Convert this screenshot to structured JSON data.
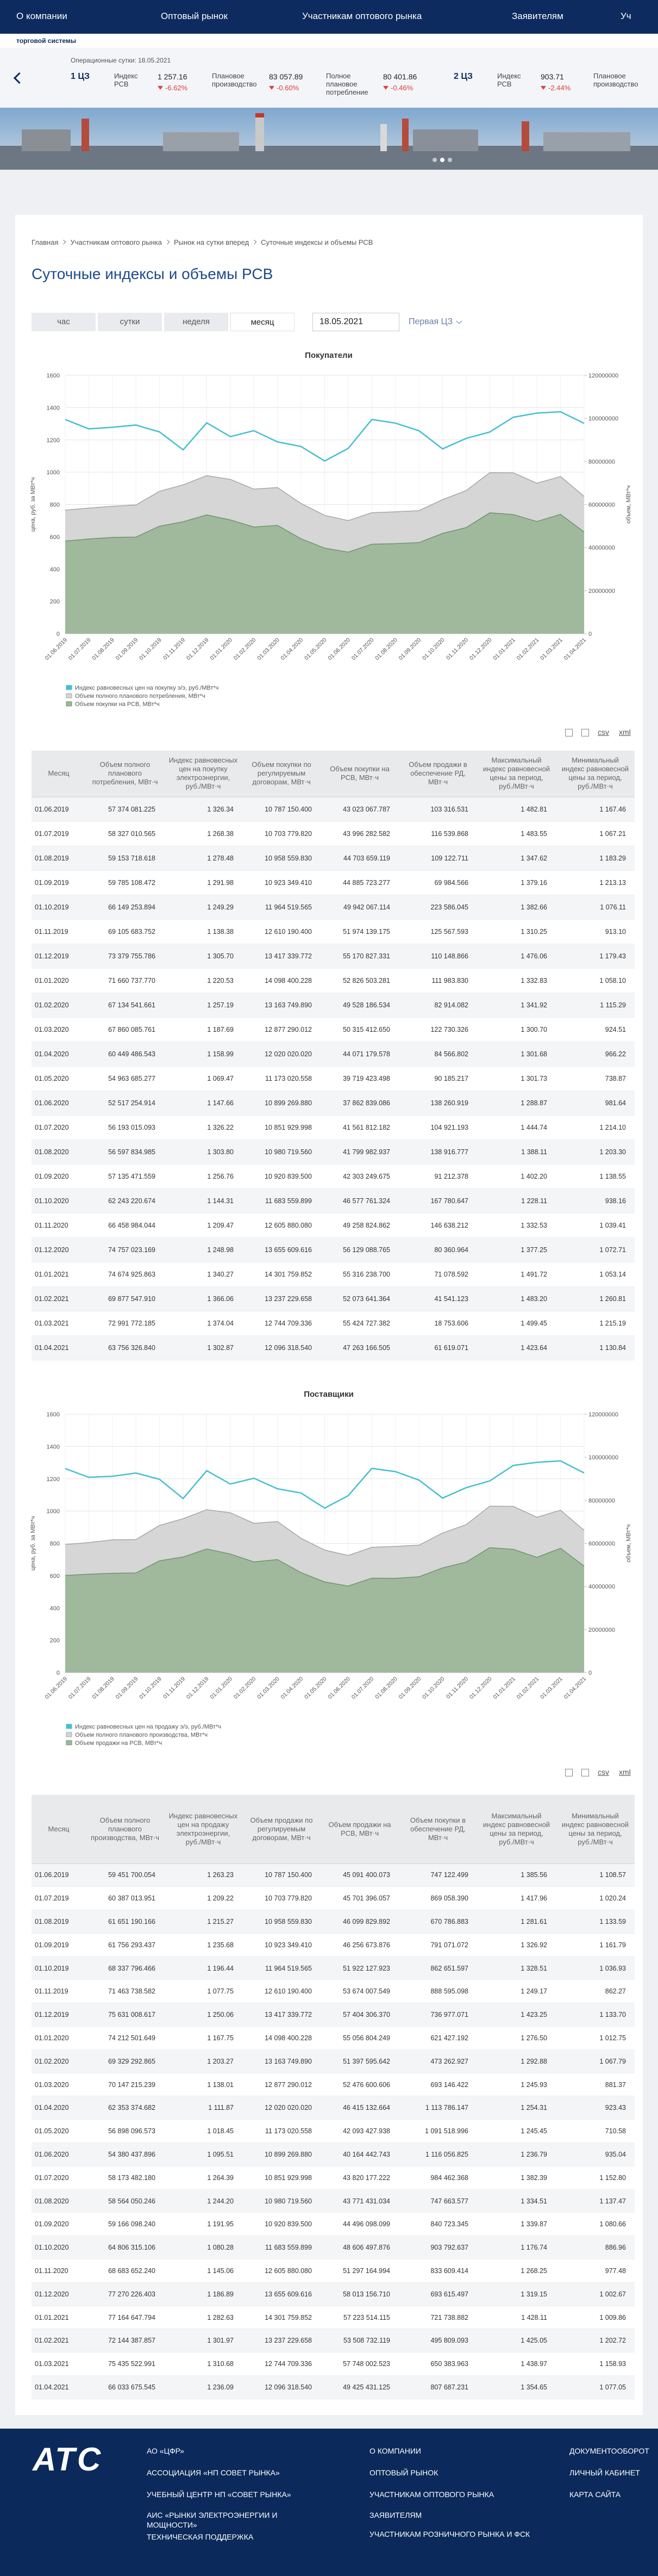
{
  "nav": {
    "items": [
      "О компании",
      "Оптовый рынок",
      "Участникам оптового рынка",
      "Заявителям",
      "Уч"
    ],
    "subtitle": "торговой системы"
  },
  "ticker": {
    "date_label": "Операционные сутки: 18.05.2021",
    "zones": [
      {
        "name": "1 ЦЗ",
        "items": [
          {
            "label": "Индекс РСВ",
            "value": "1 257.16",
            "change": "-6.62%"
          },
          {
            "label": "Плановое производство",
            "value": "83 057.89",
            "change": "-0.60%"
          },
          {
            "label": "Полное плановое потребление",
            "value": "80 401.86",
            "change": "-0.46%"
          }
        ]
      },
      {
        "name": "2 ЦЗ",
        "items": [
          {
            "label": "Индекс РСВ",
            "value": "903.71",
            "change": "-2.44%"
          },
          {
            "label": "Плановое производство"
          }
        ]
      }
    ]
  },
  "breadcrumb": [
    "Главная",
    "Участникам оптового рынка",
    "Рынок на сутки вперед",
    "Суточные индексы и объемы РСВ"
  ],
  "page_title": "Суточные индексы и объемы РСВ",
  "tabs": [
    "час",
    "сутки",
    "неделя",
    "месяц"
  ],
  "active_tab": 3,
  "date": "18.05.2021",
  "zone_select": "Первая ЦЗ",
  "exports": [
    "csv",
    "xml"
  ],
  "chart_data": [
    {
      "type": "line",
      "title": "Покупатели",
      "ylabel": "цена, руб. за МВт*ч",
      "y2label": "объем, МВт*ч",
      "categories": [
        "01.06.2019",
        "01.07.2019",
        "01.08.2019",
        "01.09.2019",
        "01.10.2019",
        "01.11.2019",
        "01.12.2019",
        "01.01.2020",
        "01.02.2020",
        "01.03.2020",
        "01.04.2020",
        "01.05.2020",
        "01.06.2020",
        "01.07.2020",
        "01.08.2020",
        "01.09.2020",
        "01.10.2020",
        "01.11.2020",
        "01.12.2020",
        "01.01.2021",
        "01.02.2021",
        "01.03.2021",
        "01.04.2021"
      ],
      "ylim": [
        0,
        1600
      ],
      "yticks": [
        0,
        200,
        400,
        600,
        800,
        1000,
        1200,
        1400,
        1600
      ],
      "y2lim": [
        0,
        120000000
      ],
      "y2ticks": [
        0,
        20000000,
        40000000,
        60000000,
        80000000,
        100000000,
        120000000
      ],
      "grid": true,
      "legend": "bottom",
      "series": [
        {
          "name": "Индекс равновесных цен на покупку э/э, руб./МВт*ч",
          "color": "#45bfcf",
          "kind": "line",
          "values": [
            1326.34,
            1268.38,
            1278.48,
            1291.98,
            1249.29,
            1138.38,
            1305.7,
            1220.53,
            1257.19,
            1187.69,
            1158.99,
            1069.47,
            1147.66,
            1326.22,
            1303.8,
            1256.76,
            1144.31,
            1209.47,
            1248.98,
            1340.27,
            1366.06,
            1374.04,
            1302.87
          ]
        },
        {
          "name": "Объем полного планового потребления, МВт*ч",
          "color": "#d4d4d4",
          "kind": "area",
          "axis": "y2",
          "values": [
            57374081.225,
            58327010.565,
            59153718.618,
            59785108.472,
            66149253.894,
            69105683.752,
            73379755.786,
            71660737.77,
            67134541.661,
            67860085.761,
            60449486.543,
            54963685.277,
            52517254.914,
            56193015.093,
            56597834.985,
            57135471.559,
            62243220.674,
            66458984.044,
            74757023.169,
            74674925.863,
            69877547.91,
            72991772.185,
            63756326.84
          ]
        },
        {
          "name": "Объем покупки на РСВ, МВт*ч",
          "color": "#9db79a",
          "kind": "area",
          "axis": "y2",
          "values": [
            43023067.787,
            43996282.582,
            44703659.119,
            44885723.277,
            49942067.114,
            51974139.175,
            55170827.331,
            52826503.281,
            49528186.534,
            50315412.65,
            44071179.578,
            39719423.498,
            37862839.086,
            41561812.182,
            41799982.937,
            42303249.675,
            46577761.324,
            49258824.862,
            56129088.765,
            55316238.7,
            52073641.364,
            55424727.382,
            47263166.505
          ]
        }
      ]
    },
    {
      "type": "line",
      "title": "Поставщики",
      "ylabel": "цена, руб. за МВт*ч",
      "y2label": "объем, МВт*ч",
      "categories": [
        "01.06.2019",
        "01.07.2019",
        "01.08.2019",
        "01.09.2019",
        "01.10.2019",
        "01.11.2019",
        "01.12.2019",
        "01.01.2020",
        "01.02.2020",
        "01.03.2020",
        "01.04.2020",
        "01.05.2020",
        "01.06.2020",
        "01.07.2020",
        "01.08.2020",
        "01.09.2020",
        "01.10.2020",
        "01.11.2020",
        "01.12.2020",
        "01.01.2021",
        "01.02.2021",
        "01.03.2021",
        "01.04.2021"
      ],
      "ylim": [
        0,
        1600
      ],
      "yticks": [
        0,
        200,
        400,
        600,
        800,
        1000,
        1200,
        1400,
        1600
      ],
      "y2lim": [
        0,
        120000000
      ],
      "y2ticks": [
        0,
        20000000,
        40000000,
        60000000,
        80000000,
        100000000,
        120000000
      ],
      "grid": true,
      "legend": "bottom",
      "series": [
        {
          "name": "Индекс равновесных цен на продажу э/э, руб./МВт*ч",
          "color": "#45bfcf",
          "kind": "line",
          "values": [
            1263.23,
            1209.22,
            1215.27,
            1235.68,
            1196.44,
            1077.75,
            1250.06,
            1167.75,
            1203.27,
            1138.01,
            1111.87,
            1018.45,
            1095.51,
            1264.39,
            1244.2,
            1191.95,
            1080.28,
            1145.06,
            1186.89,
            1282.63,
            1301.97,
            1310.68,
            1236.09
          ]
        },
        {
          "name": "Объем полного планового производства, МВт*ч",
          "color": "#d4d4d4",
          "kind": "area",
          "axis": "y2",
          "values": [
            59451700.054,
            60387013.951,
            61651190.166,
            61756293.437,
            68337796.466,
            71463738.582,
            75631008.617,
            74212501.649,
            69329292.865,
            70147215.239,
            62353374.682,
            56898096.573,
            54380437.896,
            58173482.18,
            58564050.246,
            59166098.24,
            64806315.106,
            68683652.24,
            77270226.403,
            77164647.794,
            72144387.857,
            75435522.991,
            66033675.545
          ]
        },
        {
          "name": "Объем продажи на РСВ, МВт*ч",
          "color": "#9db79a",
          "kind": "area",
          "axis": "y2",
          "values": [
            45091400.073,
            45701396.057,
            46099829.892,
            46256673.876,
            51922127.923,
            53674007.549,
            57404306.37,
            55056804.249,
            51397595.642,
            52476600.606,
            46415132.664,
            42093427.938,
            40164442.743,
            43820177.222,
            43771431.034,
            44496098.099,
            48606497.876,
            51297164.994,
            58013156.71,
            57223514.115,
            53508732.119,
            57748002.523,
            49425431.125
          ]
        }
      ]
    }
  ],
  "tables": [
    {
      "columns": [
        "Месяц",
        "Объем полного планового потребления, МВт·ч",
        "Индекс равновесных цен на покупку электроэнергии, руб./МВт·ч",
        "Объем покупки по регулируемым договорам, МВт·ч",
        "Объем покупки на РСВ, МВт·ч",
        "Объем продажи в обеспечение РД, МВт·ч",
        "Максимальный индекс равновесной цены за период, руб./МВт·ч",
        "Минимальный индекс равновесной цены за период, руб./МВт·ч"
      ],
      "rows": [
        [
          "01.06.2019",
          "57 374 081.225",
          "1 326.34",
          "10 787 150.400",
          "43 023 067.787",
          "103 316.531",
          "1 482.81",
          "1 167.46"
        ],
        [
          "01.07.2019",
          "58 327 010.565",
          "1 268.38",
          "10 703 779.820",
          "43 996 282.582",
          "116 539.868",
          "1 483.55",
          "1 067.21"
        ],
        [
          "01.08.2019",
          "59 153 718.618",
          "1 278.48",
          "10 958 559.830",
          "44 703 659.119",
          "109 122.711",
          "1 347.62",
          "1 183.29"
        ],
        [
          "01.09.2019",
          "59 785 108.472",
          "1 291.98",
          "10 923 349.410",
          "44 885 723.277",
          "69 984.566",
          "1 379.16",
          "1 213.13"
        ],
        [
          "01.10.2019",
          "66 149 253.894",
          "1 249.29",
          "11 964 519.565",
          "49 942 067.114",
          "223 586.045",
          "1 382.66",
          "1 076.11"
        ],
        [
          "01.11.2019",
          "69 105 683.752",
          "1 138.38",
          "12 610 190.400",
          "51 974 139.175",
          "125 567.593",
          "1 310.25",
          "913.10"
        ],
        [
          "01.12.2019",
          "73 379 755.786",
          "1 305.70",
          "13 417 339.772",
          "55 170 827.331",
          "110 148.866",
          "1 476.06",
          "1 179.43"
        ],
        [
          "01.01.2020",
          "71 660 737.770",
          "1 220.53",
          "14 098 400.228",
          "52 826 503.281",
          "111 983.830",
          "1 332.83",
          "1 058.10"
        ],
        [
          "01.02.2020",
          "67 134 541.661",
          "1 257.19",
          "13 163 749.890",
          "49 528 186.534",
          "82 914.082",
          "1 341.92",
          "1 115.29"
        ],
        [
          "01.03.2020",
          "67 860 085.761",
          "1 187.69",
          "12 877 290.012",
          "50 315 412.650",
          "122 730.326",
          "1 300.70",
          "924.51"
        ],
        [
          "01.04.2020",
          "60 449 486.543",
          "1 158.99",
          "12 020 020.020",
          "44 071 179.578",
          "84 566.802",
          "1 301.68",
          "966.22"
        ],
        [
          "01.05.2020",
          "54 963 685.277",
          "1 069.47",
          "11 173 020.558",
          "39 719 423.498",
          "90 185.217",
          "1 301.73",
          "738.87"
        ],
        [
          "01.06.2020",
          "52 517 254.914",
          "1 147.66",
          "10 899 269.880",
          "37 862 839.086",
          "138 260.919",
          "1 288.87",
          "981.64"
        ],
        [
          "01.07.2020",
          "56 193 015.093",
          "1 326.22",
          "10 851 929.998",
          "41 561 812.182",
          "104 921.193",
          "1 444.74",
          "1 214.10"
        ],
        [
          "01.08.2020",
          "56 597 834.985",
          "1 303.80",
          "10 980 719.560",
          "41 799 982.937",
          "138 916.777",
          "1 388.11",
          "1 203.30"
        ],
        [
          "01.09.2020",
          "57 135 471.559",
          "1 256.76",
          "10 920 839.500",
          "42 303 249.675",
          "91 212.378",
          "1 402.20",
          "1 138.55"
        ],
        [
          "01.10.2020",
          "62 243 220.674",
          "1 144.31",
          "11 683 559.899",
          "46 577 761.324",
          "167 780.647",
          "1 228.11",
          "938.16"
        ],
        [
          "01.11.2020",
          "66 458 984.044",
          "1 209.47",
          "12 605 880.080",
          "49 258 824.862",
          "146 638.212",
          "1 332.53",
          "1 039.41"
        ],
        [
          "01.12.2020",
          "74 757 023.169",
          "1 248.98",
          "13 655 609.616",
          "56 129 088.765",
          "80 360.964",
          "1 377.25",
          "1 072.71"
        ],
        [
          "01.01.2021",
          "74 674 925.863",
          "1 340.27",
          "14 301 759.852",
          "55 316 238.700",
          "71 078.592",
          "1 491.72",
          "1 053.14"
        ],
        [
          "01.02.2021",
          "69 877 547.910",
          "1 366.06",
          "13 237 229.658",
          "52 073 641.364",
          "41 541.123",
          "1 483.20",
          "1 260.81"
        ],
        [
          "01.03.2021",
          "72 991 772.185",
          "1 374.04",
          "12 744 709.336",
          "55 424 727.382",
          "18 753.606",
          "1 499.45",
          "1 215.19"
        ],
        [
          "01.04.2021",
          "63 756 326.840",
          "1 302.87",
          "12 096 318.540",
          "47 263 166.505",
          "61 619.071",
          "1 423.64",
          "1 130.84"
        ]
      ]
    },
    {
      "columns": [
        "Месяц",
        "Объем полного планового производства, МВт·ч",
        "Индекс равновесных цен на продажу электроэнергии, руб./МВт·ч",
        "Объем продажи по регулируемым договорам, МВт·ч",
        "Объем продажи на РСВ, МВт·ч",
        "Объем покупки в обеспечение РД, МВт·ч",
        "Максимальный индекс равновесной цены за период, руб./МВт·ч",
        "Минимальный индекс равновесной цены за период, руб./МВт·ч"
      ],
      "rows": [
        [
          "01.06.2019",
          "59 451 700.054",
          "1 263.23",
          "10 787 150.400",
          "45 091 400.073",
          "747 122.499",
          "1 385.56",
          "1 108.57"
        ],
        [
          "01.07.2019",
          "60 387 013.951",
          "1 209.22",
          "10 703 779.820",
          "45 701 396.057",
          "869 058.390",
          "1 417.96",
          "1 020.24"
        ],
        [
          "01.08.2019",
          "61 651 190.166",
          "1 215.27",
          "10 958 559.830",
          "46 099 829.892",
          "670 786.883",
          "1 281.61",
          "1 133.59"
        ],
        [
          "01.09.2019",
          "61 756 293.437",
          "1 235.68",
          "10 923 349.410",
          "46 256 673.876",
          "791 071.072",
          "1 326.92",
          "1 161.79"
        ],
        [
          "01.10.2019",
          "68 337 796.466",
          "1 196.44",
          "11 964 519.565",
          "51 922 127.923",
          "862 651.597",
          "1 328.51",
          "1 036.93"
        ],
        [
          "01.11.2019",
          "71 463 738.582",
          "1 077.75",
          "12 610 190.400",
          "53 674 007.549",
          "888 595.098",
          "1 249.17",
          "862.27"
        ],
        [
          "01.12.2019",
          "75 631 008.617",
          "1 250.06",
          "13 417 339.772",
          "57 404 306.370",
          "736 977.071",
          "1 423.25",
          "1 133.70"
        ],
        [
          "01.01.2020",
          "74 212 501.649",
          "1 167.75",
          "14 098 400.228",
          "55 056 804.249",
          "621 427.192",
          "1 276.50",
          "1 012.75"
        ],
        [
          "01.02.2020",
          "69 329 292.865",
          "1 203.27",
          "13 163 749.890",
          "51 397 595.642",
          "473 262.927",
          "1 292.88",
          "1 067.79"
        ],
        [
          "01.03.2020",
          "70 147 215.239",
          "1 138.01",
          "12 877 290.012",
          "52 476 600.606",
          "693 146.422",
          "1 245.93",
          "881.37"
        ],
        [
          "01.04.2020",
          "62 353 374.682",
          "1 111.87",
          "12 020 020.020",
          "46 415 132.664",
          "1 113 786.147",
          "1 254.31",
          "923.43"
        ],
        [
          "01.05.2020",
          "56 898 096.573",
          "1 018.45",
          "11 173 020.558",
          "42 093 427.938",
          "1 091 518.996",
          "1 245.45",
          "710.58"
        ],
        [
          "01.06.2020",
          "54 380 437.896",
          "1 095.51",
          "10 899 269.880",
          "40 164 442.743",
          "1 116 056.825",
          "1 236.79",
          "935.04"
        ],
        [
          "01.07.2020",
          "58 173 482.180",
          "1 264.39",
          "10 851 929.998",
          "43 820 177.222",
          "984 462.368",
          "1 382.39",
          "1 152.80"
        ],
        [
          "01.08.2020",
          "58 564 050.246",
          "1 244.20",
          "10 980 719.560",
          "43 771 431.034",
          "747 663.577",
          "1 334.51",
          "1 137.47"
        ],
        [
          "01.09.2020",
          "59 166 098.240",
          "1 191.95",
          "10 920 839.500",
          "44 496 098.099",
          "840 723.345",
          "1 339.87",
          "1 080.66"
        ],
        [
          "01.10.2020",
          "64 806 315.106",
          "1 080.28",
          "11 683 559.899",
          "48 606 497.876",
          "903 792.637",
          "1 176.74",
          "886.96"
        ],
        [
          "01.11.2020",
          "68 683 652.240",
          "1 145.06",
          "12 605 880.080",
          "51 297 164.994",
          "833 609.414",
          "1 268.25",
          "977.48"
        ],
        [
          "01.12.2020",
          "77 270 226.403",
          "1 186.89",
          "13 655 609.616",
          "58 013 156.710",
          "693 615.497",
          "1 319.15",
          "1 002.67"
        ],
        [
          "01.01.2021",
          "77 164 647.794",
          "1 282.63",
          "14 301 759.852",
          "57 223 514.115",
          "721 738.882",
          "1 428.11",
          "1 009.86"
        ],
        [
          "01.02.2021",
          "72 144 387.857",
          "1 301.97",
          "13 237 229.658",
          "53 508 732.119",
          "495 809.093",
          "1 425.05",
          "1 202.72"
        ],
        [
          "01.03.2021",
          "75 435 522.991",
          "1 310.68",
          "12 744 709.336",
          "57 748 002.523",
          "650 383.963",
          "1 438.97",
          "1 158.93"
        ],
        [
          "01.04.2021",
          "66 033 675.545",
          "1 236.09",
          "12 096 318.540",
          "49 425 431.125",
          "807 687.231",
          "1 354.65",
          "1 077.05"
        ]
      ]
    }
  ],
  "footer": {
    "logo": "АТС",
    "columns": [
      [
        "АО «ЦФР»",
        "АССОЦИАЦИЯ «НП СОВЕТ РЫНКА»",
        "УЧЕБНЫЙ ЦЕНТР НП «СОВЕТ РЫНКА»",
        "АИС «РЫНКИ ЭЛЕКТРОЭНЕРГИИ И МОЩНОСТИ»",
        "ТЕХНИЧЕСКАЯ ПОДДЕРЖКА"
      ],
      [
        "О КОМПАНИИ",
        "ОПТОВЫЙ РЫНОК",
        "УЧАСТНИКАМ ОПТОВОГО РЫНКА",
        "ЗАЯВИТЕЛЯМ",
        "УЧАСТНИКАМ РОЗНИЧНОГО РЫНКА И ФСК"
      ],
      [
        "ДОКУМЕНТООБОРОТ",
        "ЛИЧНЫЙ КАБИНЕТ",
        "КАРТА САЙТА"
      ]
    ]
  }
}
